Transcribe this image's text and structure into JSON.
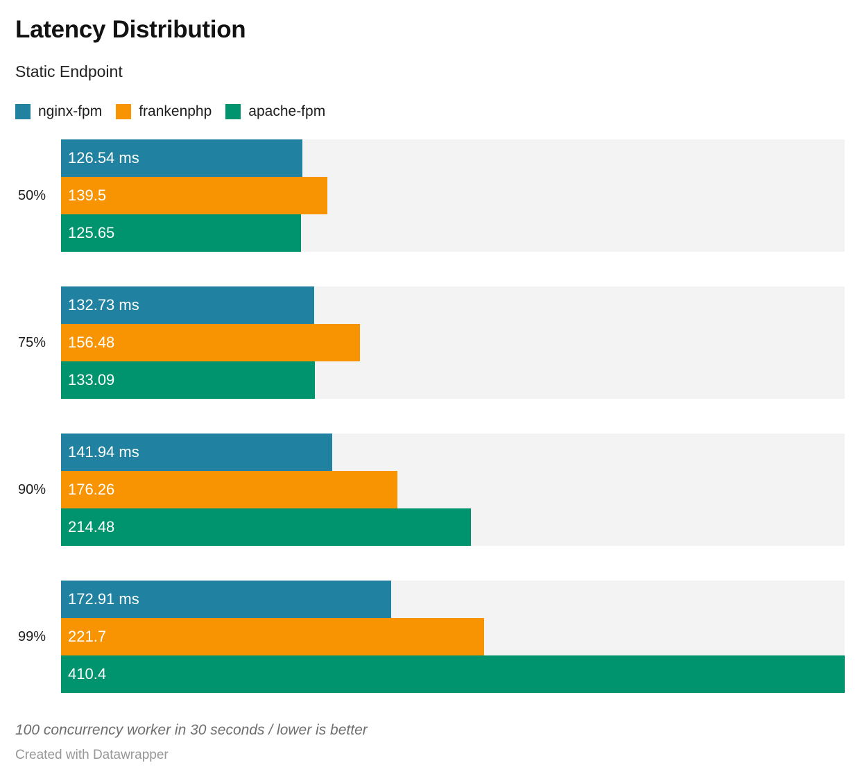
{
  "header": {
    "title": "Latency Distribution",
    "subtitle": "Static Endpoint"
  },
  "legend": [
    {
      "label": "nginx-fpm",
      "color": "#2082a0"
    },
    {
      "label": "frankenphp",
      "color": "#f89302"
    },
    {
      "label": "apache-fpm",
      "color": "#00946e"
    }
  ],
  "chart_data": {
    "type": "bar",
    "orientation": "horizontal",
    "title": "Latency Distribution",
    "subtitle": "Static Endpoint",
    "unit": "ms",
    "axis_max": 410.4,
    "track_color": "#f3f3f3",
    "grid": false,
    "legend_position": "top",
    "categories": [
      "50%",
      "75%",
      "90%",
      "99%"
    ],
    "series": [
      {
        "name": "nginx-fpm",
        "color": "#2082a0",
        "values": [
          126.54,
          132.73,
          141.94,
          172.91
        ],
        "labels": [
          "126.54 ms",
          "132.73 ms",
          "141.94 ms",
          "172.91 ms"
        ]
      },
      {
        "name": "frankenphp",
        "color": "#f89302",
        "values": [
          139.5,
          156.48,
          176.26,
          221.7
        ],
        "labels": [
          "139.5",
          "156.48",
          "176.26",
          "221.7"
        ]
      },
      {
        "name": "apache-fpm",
        "color": "#00946e",
        "values": [
          125.65,
          133.09,
          214.48,
          410.4
        ],
        "labels": [
          "125.65",
          "133.09",
          "214.48",
          "410.4"
        ]
      }
    ]
  },
  "footer": {
    "note": "100 concurrency worker in 30 seconds / lower is better",
    "credit": "Created with Datawrapper"
  }
}
